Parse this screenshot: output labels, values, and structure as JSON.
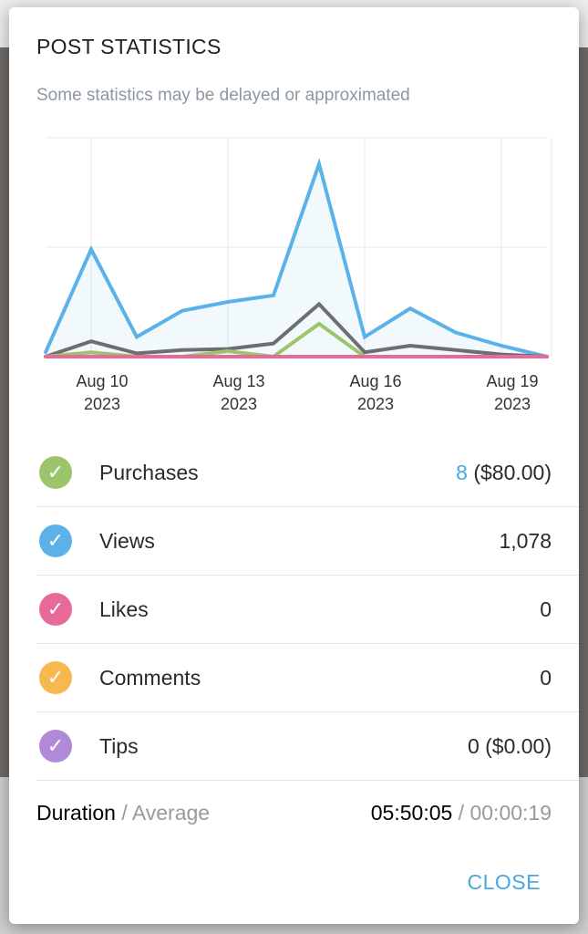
{
  "dialog": {
    "title": "POST STATISTICS",
    "subtitle": "Some statistics may be delayed or approximated",
    "close_label": "CLOSE"
  },
  "colors": {
    "purchases": "#9cc56b",
    "views": "#5ab2e8",
    "likes": "#e86a98",
    "comments": "#f7b84f",
    "tips": "#b08ad6",
    "accent": "#4aa8de",
    "engagement_total": "#6b6f73"
  },
  "stats": [
    {
      "key": "purchases",
      "icon": "check-circle-icon",
      "label": "Purchases",
      "count": "8",
      "amount": " ($80.00)"
    },
    {
      "key": "views",
      "icon": "check-circle-icon",
      "label": "Views",
      "count": "",
      "amount": "1,078"
    },
    {
      "key": "likes",
      "icon": "check-circle-icon",
      "label": "Likes",
      "count": "",
      "amount": "0"
    },
    {
      "key": "comments",
      "icon": "check-circle-icon",
      "label": "Comments",
      "count": "",
      "amount": "0"
    },
    {
      "key": "tips",
      "icon": "check-circle-icon",
      "label": "Tips",
      "count": "",
      "amount": "0 ($0.00)"
    }
  ],
  "duration": {
    "label": "Duration",
    "separator": " / ",
    "average_label": "Average",
    "value": "05:50:05",
    "average_value": "00:00:19"
  },
  "chart_data": {
    "type": "line",
    "x": [
      "2023-08-09",
      "2023-08-10",
      "2023-08-11",
      "2023-08-12",
      "2023-08-13",
      "2023-08-14",
      "2023-08-15",
      "2023-08-16",
      "2023-08-17",
      "2023-08-18",
      "2023-08-19",
      "2023-08-20"
    ],
    "x_tick_labels": [
      {
        "day": "Aug 10",
        "year": "2023",
        "index": 1
      },
      {
        "day": "Aug 13",
        "year": "2023",
        "index": 4
      },
      {
        "day": "Aug 16",
        "year": "2023",
        "index": 7
      },
      {
        "day": "Aug 19",
        "year": "2023",
        "index": 10
      }
    ],
    "ylim": [
      0,
      100
    ],
    "grid": true,
    "series": [
      {
        "key": "views",
        "values": [
          2,
          49,
          9,
          21,
          25,
          28,
          88,
          9,
          22,
          11,
          5,
          0
        ],
        "fill": true
      },
      {
        "key": "engagement_total",
        "values": [
          0,
          7,
          1.5,
          3,
          3.5,
          6,
          24,
          2,
          5,
          3,
          1,
          0
        ]
      },
      {
        "key": "purchases",
        "values": [
          0,
          2,
          0,
          0,
          2.5,
          0,
          15,
          0,
          0,
          0,
          0,
          0
        ]
      },
      {
        "key": "likes",
        "values": [
          0,
          0,
          0,
          0,
          0,
          0,
          0,
          0,
          0,
          0,
          0,
          0
        ]
      }
    ]
  }
}
